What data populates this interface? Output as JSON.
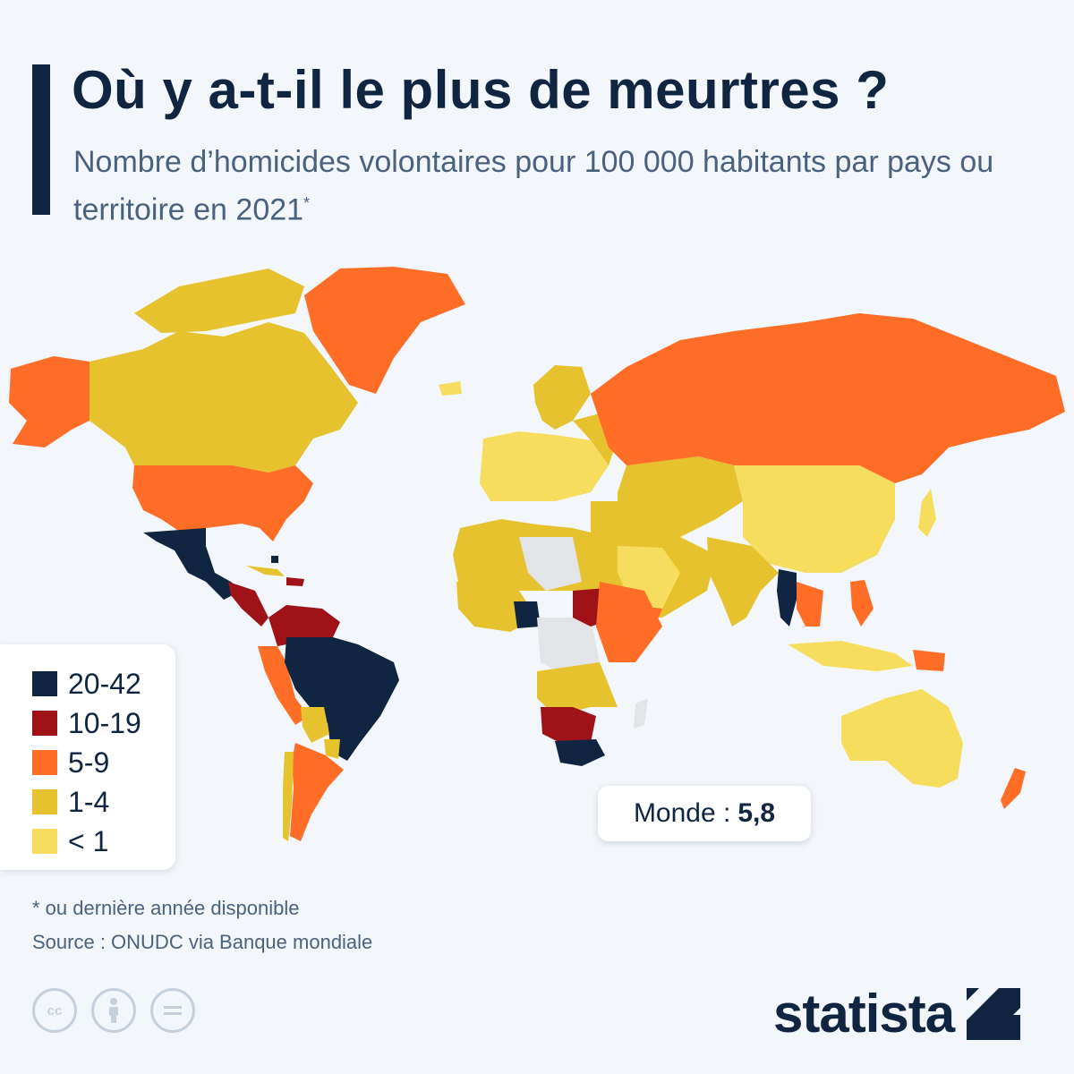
{
  "header": {
    "title": "Où y a-t-il le plus de meurtres ?",
    "subtitle": "Nombre d’homicides volontaires pour 100 000 habitants par pays ou territoire en 2021",
    "subtitle_mark": "*"
  },
  "colors": {
    "c20_42": "#0f2541",
    "c10_19": "#9e1218",
    "c5_9": "#ff6d27",
    "c1_4": "#e6c22e",
    "c_lt1": "#f7dd5e",
    "no_data": "#e2e4e7",
    "ocean": "#f3f6fa"
  },
  "legend": {
    "items": [
      {
        "label": "20-42",
        "color": "#0f2541"
      },
      {
        "label": "10-19",
        "color": "#9e1218"
      },
      {
        "label": "5-9",
        "color": "#ff6d27"
      },
      {
        "label": "1-4",
        "color": "#e6c22e"
      },
      {
        "label": "< 1",
        "color": "#f7dd5e"
      }
    ]
  },
  "world": {
    "label": "Monde :",
    "value": "5,8"
  },
  "footer": {
    "footnote": "* ou dernière année disponible",
    "source": "Source : ONUDC via Banque mondiale",
    "license_icons": [
      "cc-icon",
      "attribution-icon",
      "no-derivatives-icon"
    ],
    "brand": "statista"
  }
}
